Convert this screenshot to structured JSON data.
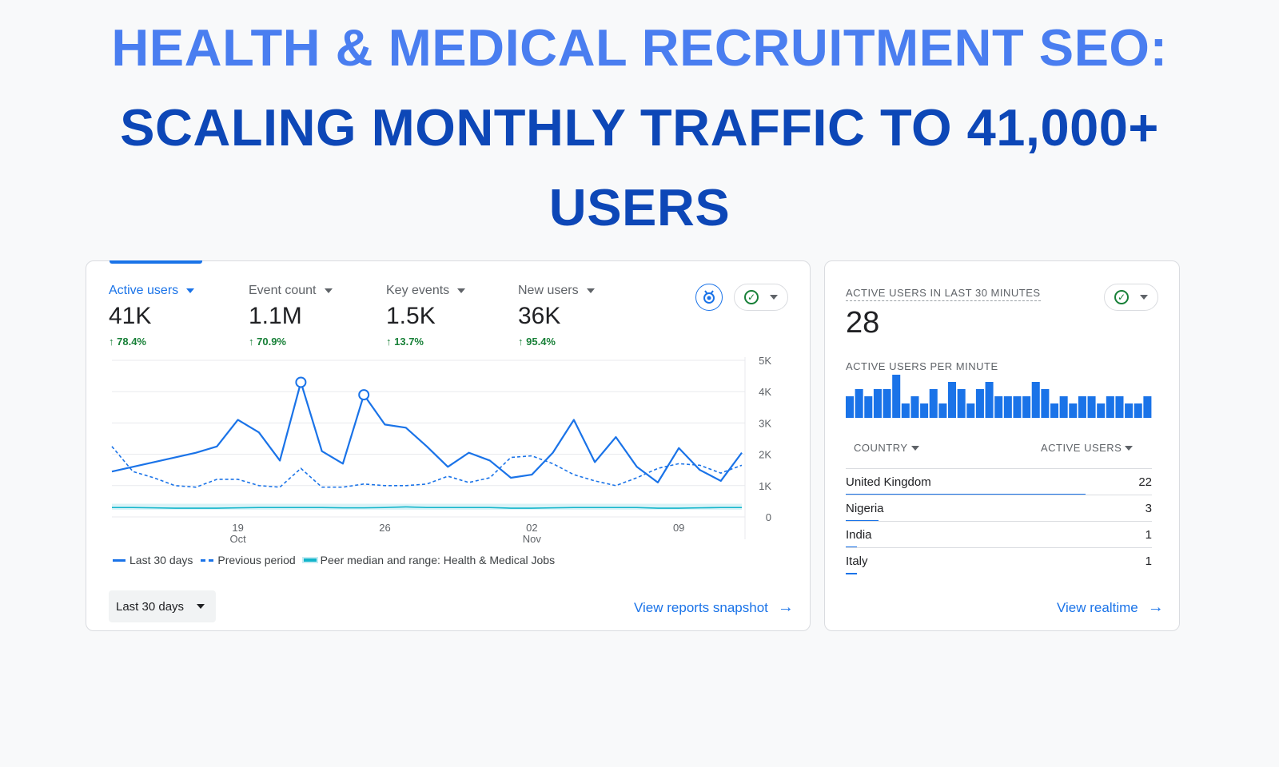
{
  "headline": {
    "line1": "HEALTH & MEDICAL RECRUITMENT SEO:",
    "line2": "SCALING MONTHLY TRAFFIC TO 41,000+",
    "line3": "USERS",
    "color_line1": "#4a7ef0",
    "color_line2": "#0d47b7"
  },
  "metrics": [
    {
      "label": "Active users",
      "value": "41K",
      "change": "78.4%",
      "active": true
    },
    {
      "label": "Event count",
      "value": "1.1M",
      "change": "70.9%",
      "active": false
    },
    {
      "label": "Key events",
      "value": "1.5K",
      "change": "13.7%",
      "active": false
    },
    {
      "label": "New users",
      "value": "36K",
      "change": "95.4%",
      "active": false
    }
  ],
  "icons": {
    "insights": "insights-badge-icon",
    "check": "check-circle-icon",
    "dropdown": "chevron-down-icon",
    "arrow": "arrow-right-icon"
  },
  "chart_data": {
    "type": "line",
    "y_ticks": [
      "5K",
      "4K",
      "3K",
      "2K",
      "1K",
      "0"
    ],
    "ylim": [
      0,
      5000
    ],
    "x_tick_labels": [
      {
        "day": "19",
        "month": "Oct",
        "index": 6
      },
      {
        "day": "26",
        "month": "",
        "index": 13
      },
      {
        "day": "02",
        "month": "Nov",
        "index": 20
      },
      {
        "day": "09",
        "month": "",
        "index": 27
      }
    ],
    "series": [
      {
        "name": "Last 30 days",
        "style": "solid",
        "color": "#1a73e8",
        "values": [
          1450,
          1600,
          1750,
          1900,
          2050,
          2250,
          3100,
          2700,
          1800,
          4300,
          2100,
          1700,
          3900,
          2950,
          2850,
          2250,
          1600,
          2050,
          1800,
          1250,
          1350,
          2050,
          3100,
          1750,
          2550,
          1600,
          1100,
          2200,
          1500,
          1150,
          2050
        ]
      },
      {
        "name": "Previous period",
        "style": "dashed",
        "color": "#1a73e8",
        "values": [
          2250,
          1450,
          1250,
          1000,
          950,
          1200,
          1200,
          1000,
          950,
          1550,
          950,
          950,
          1050,
          1000,
          1000,
          1050,
          1300,
          1100,
          1250,
          1900,
          1950,
          1700,
          1350,
          1150,
          1000,
          1250,
          1550,
          1700,
          1650,
          1400,
          1650
        ]
      },
      {
        "name": "Peer median and range: Health & Medical Jobs",
        "style": "band",
        "color": "#12b5cb",
        "values": [
          300,
          300,
          290,
          280,
          280,
          280,
          290,
          300,
          300,
          300,
          300,
          290,
          290,
          300,
          320,
          300,
          300,
          300,
          300,
          280,
          280,
          290,
          300,
          300,
          300,
          300,
          280,
          280,
          290,
          300,
          300
        ],
        "band_low": 230,
        "band_high": 420
      }
    ],
    "highlight_points": [
      9,
      12
    ]
  },
  "legend": {
    "last": "Last 30 days",
    "previous": "Previous period",
    "peer": "Peer median and range: Health & Medical Jobs"
  },
  "date_range_button": "Last 30 days",
  "view_reports_link": "View reports snapshot",
  "realtime": {
    "title": "ACTIVE USERS IN LAST 30 MINUTES",
    "count": "28",
    "per_minute_label": "ACTIVE USERS PER MINUTE",
    "per_minute_values": [
      3,
      4,
      3,
      4,
      4,
      6,
      2,
      3,
      2,
      4,
      2,
      5,
      4,
      2,
      4,
      5,
      3,
      3,
      3,
      3,
      5,
      4,
      2,
      3,
      2,
      3,
      3,
      2,
      3,
      3,
      2,
      2,
      3
    ],
    "col_country": "COUNTRY",
    "col_users": "ACTIVE USERS",
    "rows": [
      {
        "country": "United Kingdom",
        "users": "22",
        "fraction": 1.0
      },
      {
        "country": "Nigeria",
        "users": "3",
        "fraction": 0.136
      },
      {
        "country": "India",
        "users": "1",
        "fraction": 0.045
      },
      {
        "country": "Italy",
        "users": "1",
        "fraction": 0.045
      }
    ],
    "view_link": "View realtime"
  }
}
